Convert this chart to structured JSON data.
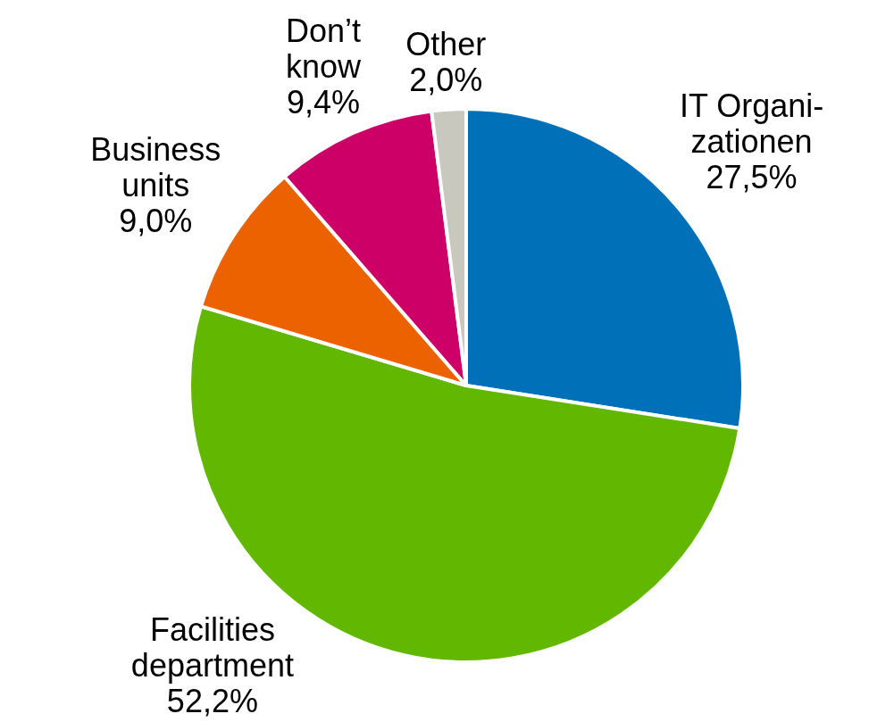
{
  "chart_data": {
    "type": "pie",
    "categories": [
      "IT Organi-\nzationen",
      "Facilities\ndepartment",
      "Business\nunits",
      "Don’t\nknow",
      "Other"
    ],
    "values": [
      27.5,
      52.2,
      9.0,
      9.4,
      2.0
    ],
    "value_labels": [
      "27,5%",
      "52,2%",
      "9,0%",
      "9,4%",
      "2,0%"
    ],
    "colors": [
      "#0070b8",
      "#62b800",
      "#ec6100",
      "#cc0066",
      "#c8c8be"
    ],
    "legend": false
  }
}
